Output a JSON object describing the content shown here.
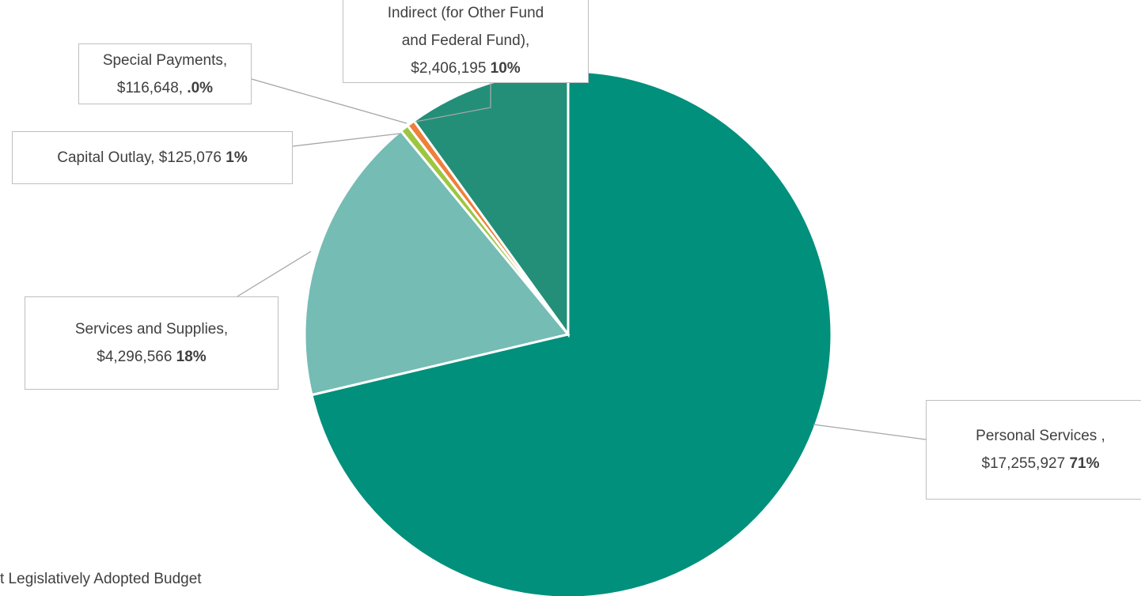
{
  "chart_data": {
    "type": "pie",
    "categories": [
      "Personal Services ,",
      "Services and Supplies,",
      "Capital Outlay,",
      "Special Payments,",
      "Indirect (for Other Fund and Federal Fund),"
    ],
    "values": [
      17255927,
      4296566,
      125076,
      116648,
      2406195
    ],
    "value_labels": [
      "$17,255,927",
      "$4,296,566",
      "$125,076",
      "$116,648,",
      "$2,406,195"
    ],
    "percent_labels": [
      "71%",
      "18%",
      "1%",
      ".0%",
      "10%"
    ],
    "colors": [
      "#00907c",
      "#74bcb4",
      "#9dc640",
      "#f07f3c",
      "#238f78"
    ],
    "footnote": "t Legislatively Adopted Budget"
  }
}
